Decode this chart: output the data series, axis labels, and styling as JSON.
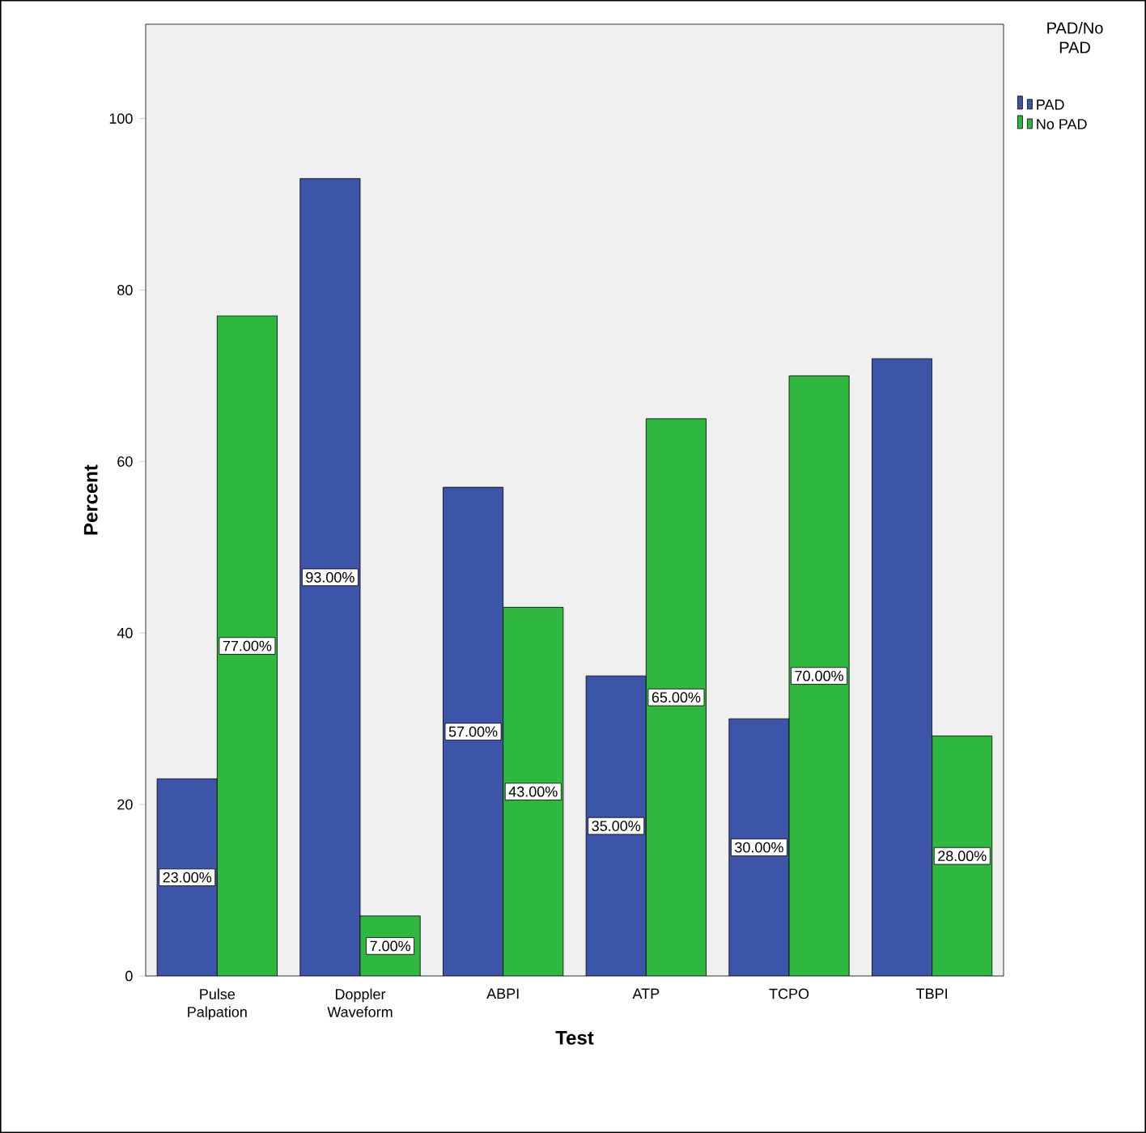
{
  "chart_data": {
    "type": "bar",
    "xlabel": "Test",
    "ylabel": "Percent",
    "legend_title": "PAD/No PAD",
    "categories": [
      "Pulse Palpation",
      "Doppler Waveform",
      "ABPI",
      "ATP",
      "TCPO",
      "TBPI"
    ],
    "series": [
      {
        "name": "PAD",
        "color": "#3c55a8",
        "values": [
          23,
          93,
          57,
          35,
          30,
          72
        ],
        "value_labels": [
          "23.00%",
          "93.00%",
          "57.00%",
          "35.00%",
          "30.00%",
          null
        ]
      },
      {
        "name": "No PAD",
        "color": "#2eb83f",
        "values": [
          77,
          7,
          43,
          65,
          70,
          28
        ],
        "value_labels": [
          "77.00%",
          "7.00%",
          "43.00%",
          "65.00%",
          "70.00%",
          "28.00%"
        ]
      }
    ],
    "ylim": [
      0,
      111
    ],
    "yticks": [
      0,
      20,
      40,
      60,
      80,
      100
    ],
    "legend": "top right"
  }
}
